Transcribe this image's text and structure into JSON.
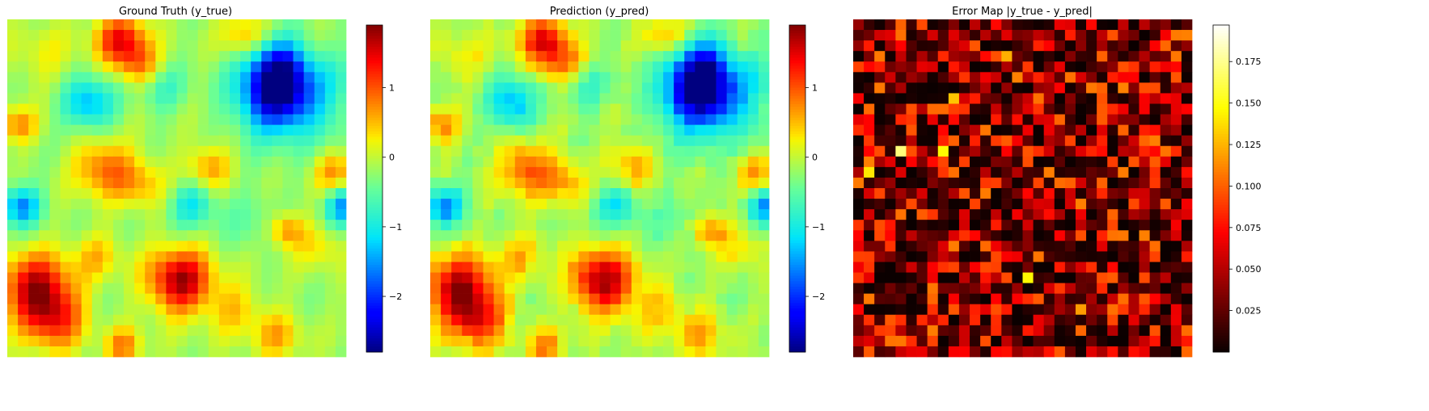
{
  "chart_data": [
    {
      "type": "heatmap",
      "title": "Ground Truth (y_true)",
      "colormap": "jet",
      "grid_size": [
        32,
        32
      ],
      "value_range": [
        -2.8,
        1.9
      ],
      "colorbar": {
        "ticks": [
          1,
          0,
          -1,
          -2
        ],
        "tick_labels": [
          "1",
          "0",
          "−1",
          "−2"
        ]
      },
      "axes_visible": false,
      "grid": false,
      "features": [
        {
          "label": "strong low (dark blue)",
          "row": 6,
          "col": 25,
          "value": -2.8
        },
        {
          "label": "low (blue)",
          "row": 7,
          "col": 7,
          "value": -1.2
        },
        {
          "label": "low (blue)",
          "row": 17,
          "col": 1,
          "value": -1.4
        },
        {
          "label": "low (blue)",
          "row": 17,
          "col": 31,
          "value": -1.3
        },
        {
          "label": "high (dark red)",
          "row": 25,
          "col": 2,
          "value": 1.8
        },
        {
          "label": "high (dark red)",
          "row": 24,
          "col": 16,
          "value": 1.9
        },
        {
          "label": "high (red)",
          "row": 1,
          "col": 10,
          "value": 1.5
        }
      ]
    },
    {
      "type": "heatmap",
      "title": "Prediction (y_pred)",
      "colormap": "jet",
      "grid_size": [
        32,
        32
      ],
      "value_range": [
        -2.8,
        1.9
      ],
      "colorbar": {
        "ticks": [
          1,
          0,
          -1,
          -2
        ],
        "tick_labels": [
          "1",
          "0",
          "−1",
          "−2"
        ]
      },
      "axes_visible": false,
      "grid": false
    },
    {
      "type": "heatmap",
      "title": "Error Map |y_true - y_pred|",
      "colormap": "hot",
      "grid_size": [
        32,
        32
      ],
      "value_range": [
        0.0,
        0.197
      ],
      "colorbar": {
        "ticks": [
          0.025,
          0.05,
          0.075,
          0.1,
          0.125,
          0.15,
          0.175
        ],
        "tick_labels": [
          "0.025",
          "0.050",
          "0.075",
          "0.100",
          "0.125",
          "0.150",
          "0.175"
        ]
      },
      "axes_visible": false,
      "grid": false
    }
  ]
}
